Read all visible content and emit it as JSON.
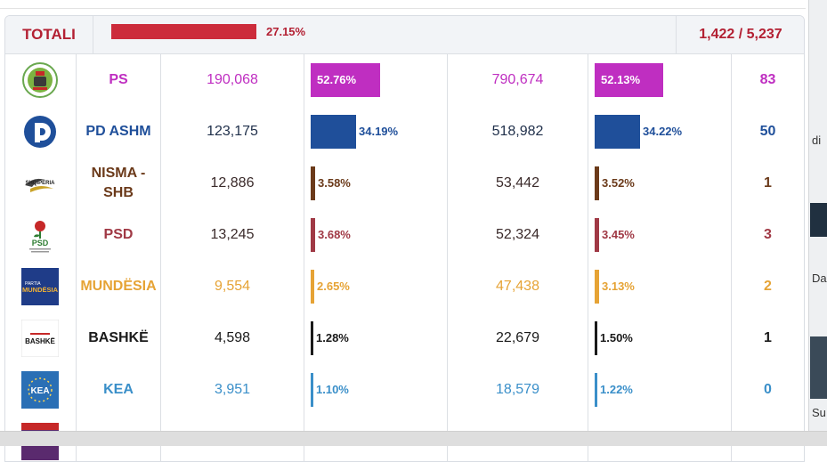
{
  "summary": {
    "label": "TOTALI",
    "progress": 0.2715,
    "percent_text": "27.15%",
    "count_text": "1,422 / 5,237"
  },
  "parties": [
    {
      "name": "PS",
      "votes": "190,068",
      "pct": "52.76%",
      "pct_value": 52.76,
      "votes2": "790,674",
      "pct2": "52.13%",
      "pct2_value": 52.13,
      "seats": "83",
      "color": "#bf2ec1",
      "logo": "ps-logo-icon"
    },
    {
      "name": "PD ASHM",
      "votes": "123,175",
      "pct": "34.19%",
      "pct_value": 34.19,
      "votes2": "518,982",
      "pct2": "34.22%",
      "pct2_value": 34.22,
      "seats": "50",
      "color": "#1f4f9a",
      "logo": "pd-logo-icon"
    },
    {
      "name": "NISMA - SHB",
      "votes": "12,886",
      "pct": "3.58%",
      "pct_value": 3.58,
      "votes2": "53,442",
      "pct2": "3.52%",
      "pct2_value": 3.52,
      "seats": "1",
      "color": "#6b3a1a",
      "logo": "shqiperia-logo-icon"
    },
    {
      "name": "PSD",
      "votes": "13,245",
      "pct": "3.68%",
      "pct_value": 3.68,
      "votes2": "52,324",
      "pct2": "3.45%",
      "pct2_value": 3.45,
      "seats": "3",
      "color": "#a03945",
      "logo": "psd-logo-icon"
    },
    {
      "name": "MUNDËSIA",
      "votes": "9,554",
      "pct": "2.65%",
      "pct_value": 2.65,
      "votes2": "47,438",
      "pct2": "3.13%",
      "pct2_value": 3.13,
      "seats": "2",
      "color": "#e6a335",
      "logo": "mundesia-logo-icon"
    },
    {
      "name": "BASHKË",
      "votes": "4,598",
      "pct": "1.28%",
      "pct_value": 1.28,
      "votes2": "22,679",
      "pct2": "1.50%",
      "pct2_value": 1.5,
      "seats": "1",
      "color": "#1a1a1a",
      "logo": "bashke-logo-icon"
    },
    {
      "name": "KEA",
      "votes": "3,951",
      "pct": "1.10%",
      "pct_value": 1.1,
      "votes2": "18,579",
      "pct2": "1.22%",
      "pct2_value": 1.22,
      "seats": "0",
      "color": "#3a8fc9",
      "logo": "kea-logo-icon"
    }
  ],
  "logo_texts": {
    "shqiperia": "SHQIPËRIA",
    "psd": "PSD",
    "mundesia_small": "PARTIA",
    "mundesia": "MUNDËSIA",
    "bashke": "BASHKË",
    "kea": "KEA"
  },
  "side_strip": {
    "letters": [
      "di",
      "Da",
      "Su"
    ]
  }
}
